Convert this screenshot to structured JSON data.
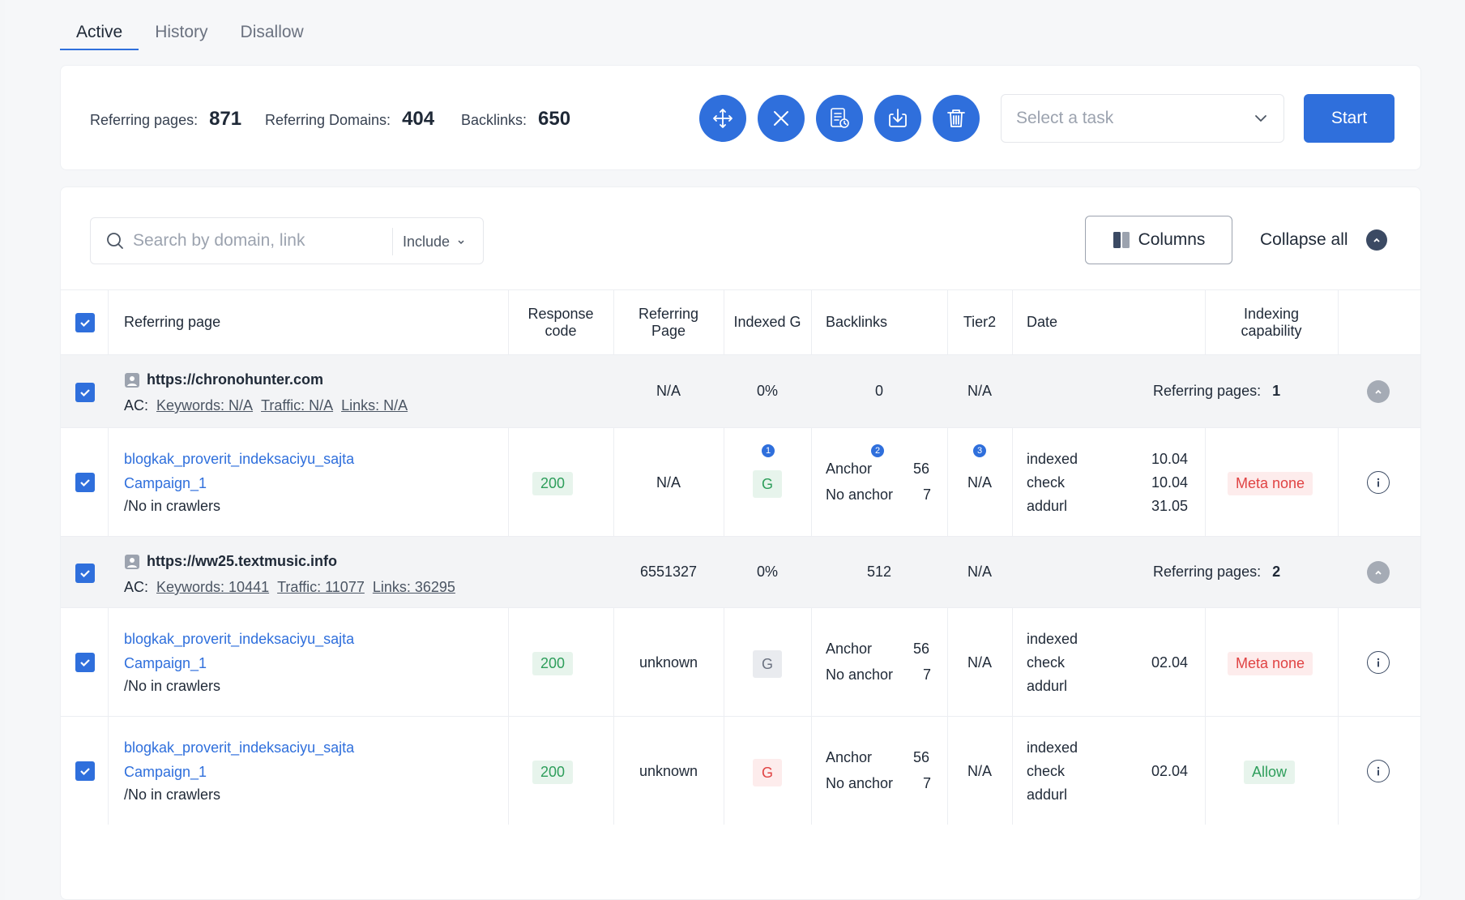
{
  "tabs": [
    "Active",
    "History",
    "Disallow"
  ],
  "stats": {
    "referring_pages_label": "Referring pages:",
    "referring_pages_value": "871",
    "referring_domains_label": "Referring Domains:",
    "referring_domains_value": "404",
    "backlinks_label": "Backlinks:",
    "backlinks_value": "650"
  },
  "toolbar": {
    "actions": [
      "move-icon",
      "close-icon",
      "report-icon",
      "download-icon",
      "trash-icon"
    ],
    "task_placeholder": "Select a task",
    "start_label": "Start"
  },
  "filters": {
    "search_placeholder": "Search by domain, link",
    "include_label": "Include",
    "columns_label": "Columns",
    "collapse_all_label": "Collapse all"
  },
  "headers": {
    "referring_page": "Referring page",
    "response_code": "Response code",
    "referring_page2": "Referring Page",
    "indexed_g": "Indexed G",
    "backlinks": "Backlinks",
    "tier2": "Tier2",
    "date": "Date",
    "indexing_capability": "Indexing capability"
  },
  "groups": [
    {
      "domain": "https://chronohunter.com",
      "ac_label": "AC:",
      "keywords": "Keywords: N/A",
      "traffic": "Traffic: N/A",
      "links": "Links: N/A",
      "referring_page": "N/A",
      "indexed": "0%",
      "backlinks": "0",
      "tier2": "N/A",
      "ref_pages_label": "Referring pages:",
      "ref_pages_value": "1"
    },
    {
      "domain": "https://ww25.textmusic.info",
      "ac_label": "AC:",
      "keywords": "Keywords: 10441",
      "traffic": "Traffic: 11077",
      "links": "Links: 36295",
      "referring_page": "6551327",
      "indexed": "0%",
      "backlinks": "512",
      "tier2": "N/A",
      "ref_pages_label": "Referring pages:",
      "ref_pages_value": "2"
    }
  ],
  "rows": [
    {
      "page": "blogkak_proverit_indeksaciyu_sajta",
      "campaign": "Campaign_1",
      "crawlers": "/No in crawlers",
      "response": "200",
      "referring_page": "N/A",
      "g": "G",
      "anchor_label": "Anchor",
      "anchor_value": "56",
      "no_anchor_label": "No anchor",
      "no_anchor_value": "7",
      "tier2": "N/A",
      "date_status": [
        "indexed",
        "check",
        "addurl"
      ],
      "dates": [
        "10.04",
        "10.04",
        "31.05"
      ],
      "capability": "Meta none",
      "markers": [
        "1",
        "2",
        "3"
      ]
    },
    {
      "page": "blogkak_proverit_indeksaciyu_sajta",
      "campaign": "Campaign_1",
      "crawlers": "/No in crawlers",
      "response": "200",
      "referring_page": "unknown",
      "g": "G",
      "anchor_label": "Anchor",
      "anchor_value": "56",
      "no_anchor_label": "No anchor",
      "no_anchor_value": "7",
      "tier2": "N/A",
      "date_status": [
        "indexed",
        "check",
        "addurl"
      ],
      "date": "02.04",
      "capability": "Meta none"
    },
    {
      "page": "blogkak_proverit_indeksaciyu_sajta",
      "campaign": "Campaign_1",
      "crawlers": "/No in crawlers",
      "response": "200",
      "referring_page": "unknown",
      "g": "G",
      "anchor_label": "Anchor",
      "anchor_value": "56",
      "no_anchor_label": "No anchor",
      "no_anchor_value": "7",
      "tier2": "N/A",
      "date_status": [
        "indexed",
        "check",
        "addurl"
      ],
      "date": "02.04",
      "capability": "Allow"
    }
  ]
}
